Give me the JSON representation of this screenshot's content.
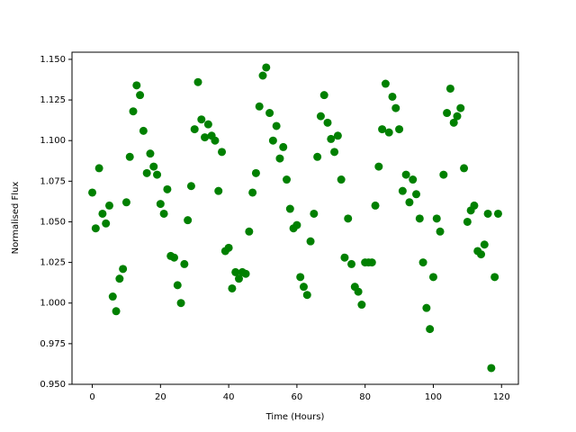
{
  "chart_data": {
    "type": "scatter",
    "x_label": "Time (Hours)",
    "y_label": "Normalised Flux",
    "color": "#008000",
    "x": [
      0,
      1,
      2,
      3,
      4,
      5,
      6,
      7,
      8,
      9,
      10,
      11,
      12,
      13,
      14,
      15,
      16,
      17,
      18,
      19,
      20,
      21,
      22,
      23,
      24,
      25,
      26,
      27,
      28,
      29,
      30,
      31,
      32,
      33,
      34,
      35,
      36,
      37,
      38,
      39,
      40,
      41,
      42,
      43,
      44,
      45,
      46,
      47,
      48,
      49,
      50,
      51,
      52,
      53,
      54,
      55,
      56,
      57,
      58,
      59,
      60,
      61,
      62,
      63,
      64,
      65,
      66,
      67,
      68,
      69,
      70,
      71,
      72,
      73,
      74,
      75,
      76,
      77,
      78,
      79,
      80,
      81,
      82,
      83,
      84,
      85,
      86,
      87,
      88,
      89,
      90,
      91,
      92,
      93,
      94,
      95,
      96,
      97,
      98,
      99,
      100,
      101,
      102,
      103,
      104,
      105,
      106,
      107,
      108,
      109,
      110,
      111,
      112,
      113,
      114,
      115,
      116,
      117,
      118,
      119
    ],
    "values": [
      1.068,
      1.046,
      1.083,
      1.055,
      1.049,
      1.06,
      1.004,
      0.995,
      1.015,
      1.021,
      1.062,
      1.09,
      1.118,
      1.134,
      1.128,
      1.106,
      1.08,
      1.092,
      1.084,
      1.079,
      1.061,
      1.055,
      1.07,
      1.029,
      1.028,
      1.011,
      1.0,
      1.024,
      1.051,
      1.072,
      1.107,
      1.136,
      1.113,
      1.102,
      1.11,
      1.103,
      1.1,
      1.069,
      1.093,
      1.032,
      1.034,
      1.009,
      1.019,
      1.015,
      1.019,
      1.018,
      1.044,
      1.068,
      1.08,
      1.121,
      1.14,
      1.145,
      1.117,
      1.1,
      1.109,
      1.089,
      1.096,
      1.076,
      1.058,
      1.046,
      1.048,
      1.016,
      1.01,
      1.005,
      1.038,
      1.055,
      1.09,
      1.115,
      1.128,
      1.111,
      1.101,
      1.093,
      1.103,
      1.076,
      1.028,
      1.052,
      1.024,
      1.01,
      1.007,
      0.999,
      1.025,
      1.025,
      1.025,
      1.06,
      1.084,
      1.107,
      1.135,
      1.105,
      1.127,
      1.12,
      1.107,
      1.069,
      1.079,
      1.062,
      1.076,
      1.067,
      1.052,
      1.025,
      0.997,
      0.984,
      1.016,
      1.052,
      1.044,
      1.079,
      1.117,
      1.132,
      1.111,
      1.115,
      1.12,
      1.083,
      1.05,
      1.057,
      1.06,
      1.032,
      1.03,
      1.036,
      1.055,
      0.96,
      1.016,
      1.055
    ],
    "xlim": [
      -5.95,
      124.95
    ],
    "ylim": [
      0.95,
      1.1544
    ],
    "xticks": [
      0,
      20,
      40,
      60,
      80,
      100,
      120
    ],
    "yticks": [
      {
        "value": 0.95,
        "label": "0.950"
      },
      {
        "value": 0.975,
        "label": "0.975"
      },
      {
        "value": 1.0,
        "label": "1.000"
      },
      {
        "value": 1.025,
        "label": "1.025"
      },
      {
        "value": 1.05,
        "label": "1.050"
      },
      {
        "value": 1.075,
        "label": "1.075"
      },
      {
        "value": 1.1,
        "label": "1.100"
      },
      {
        "value": 1.125,
        "label": "1.125"
      },
      {
        "value": 1.15,
        "label": "1.150"
      }
    ]
  }
}
